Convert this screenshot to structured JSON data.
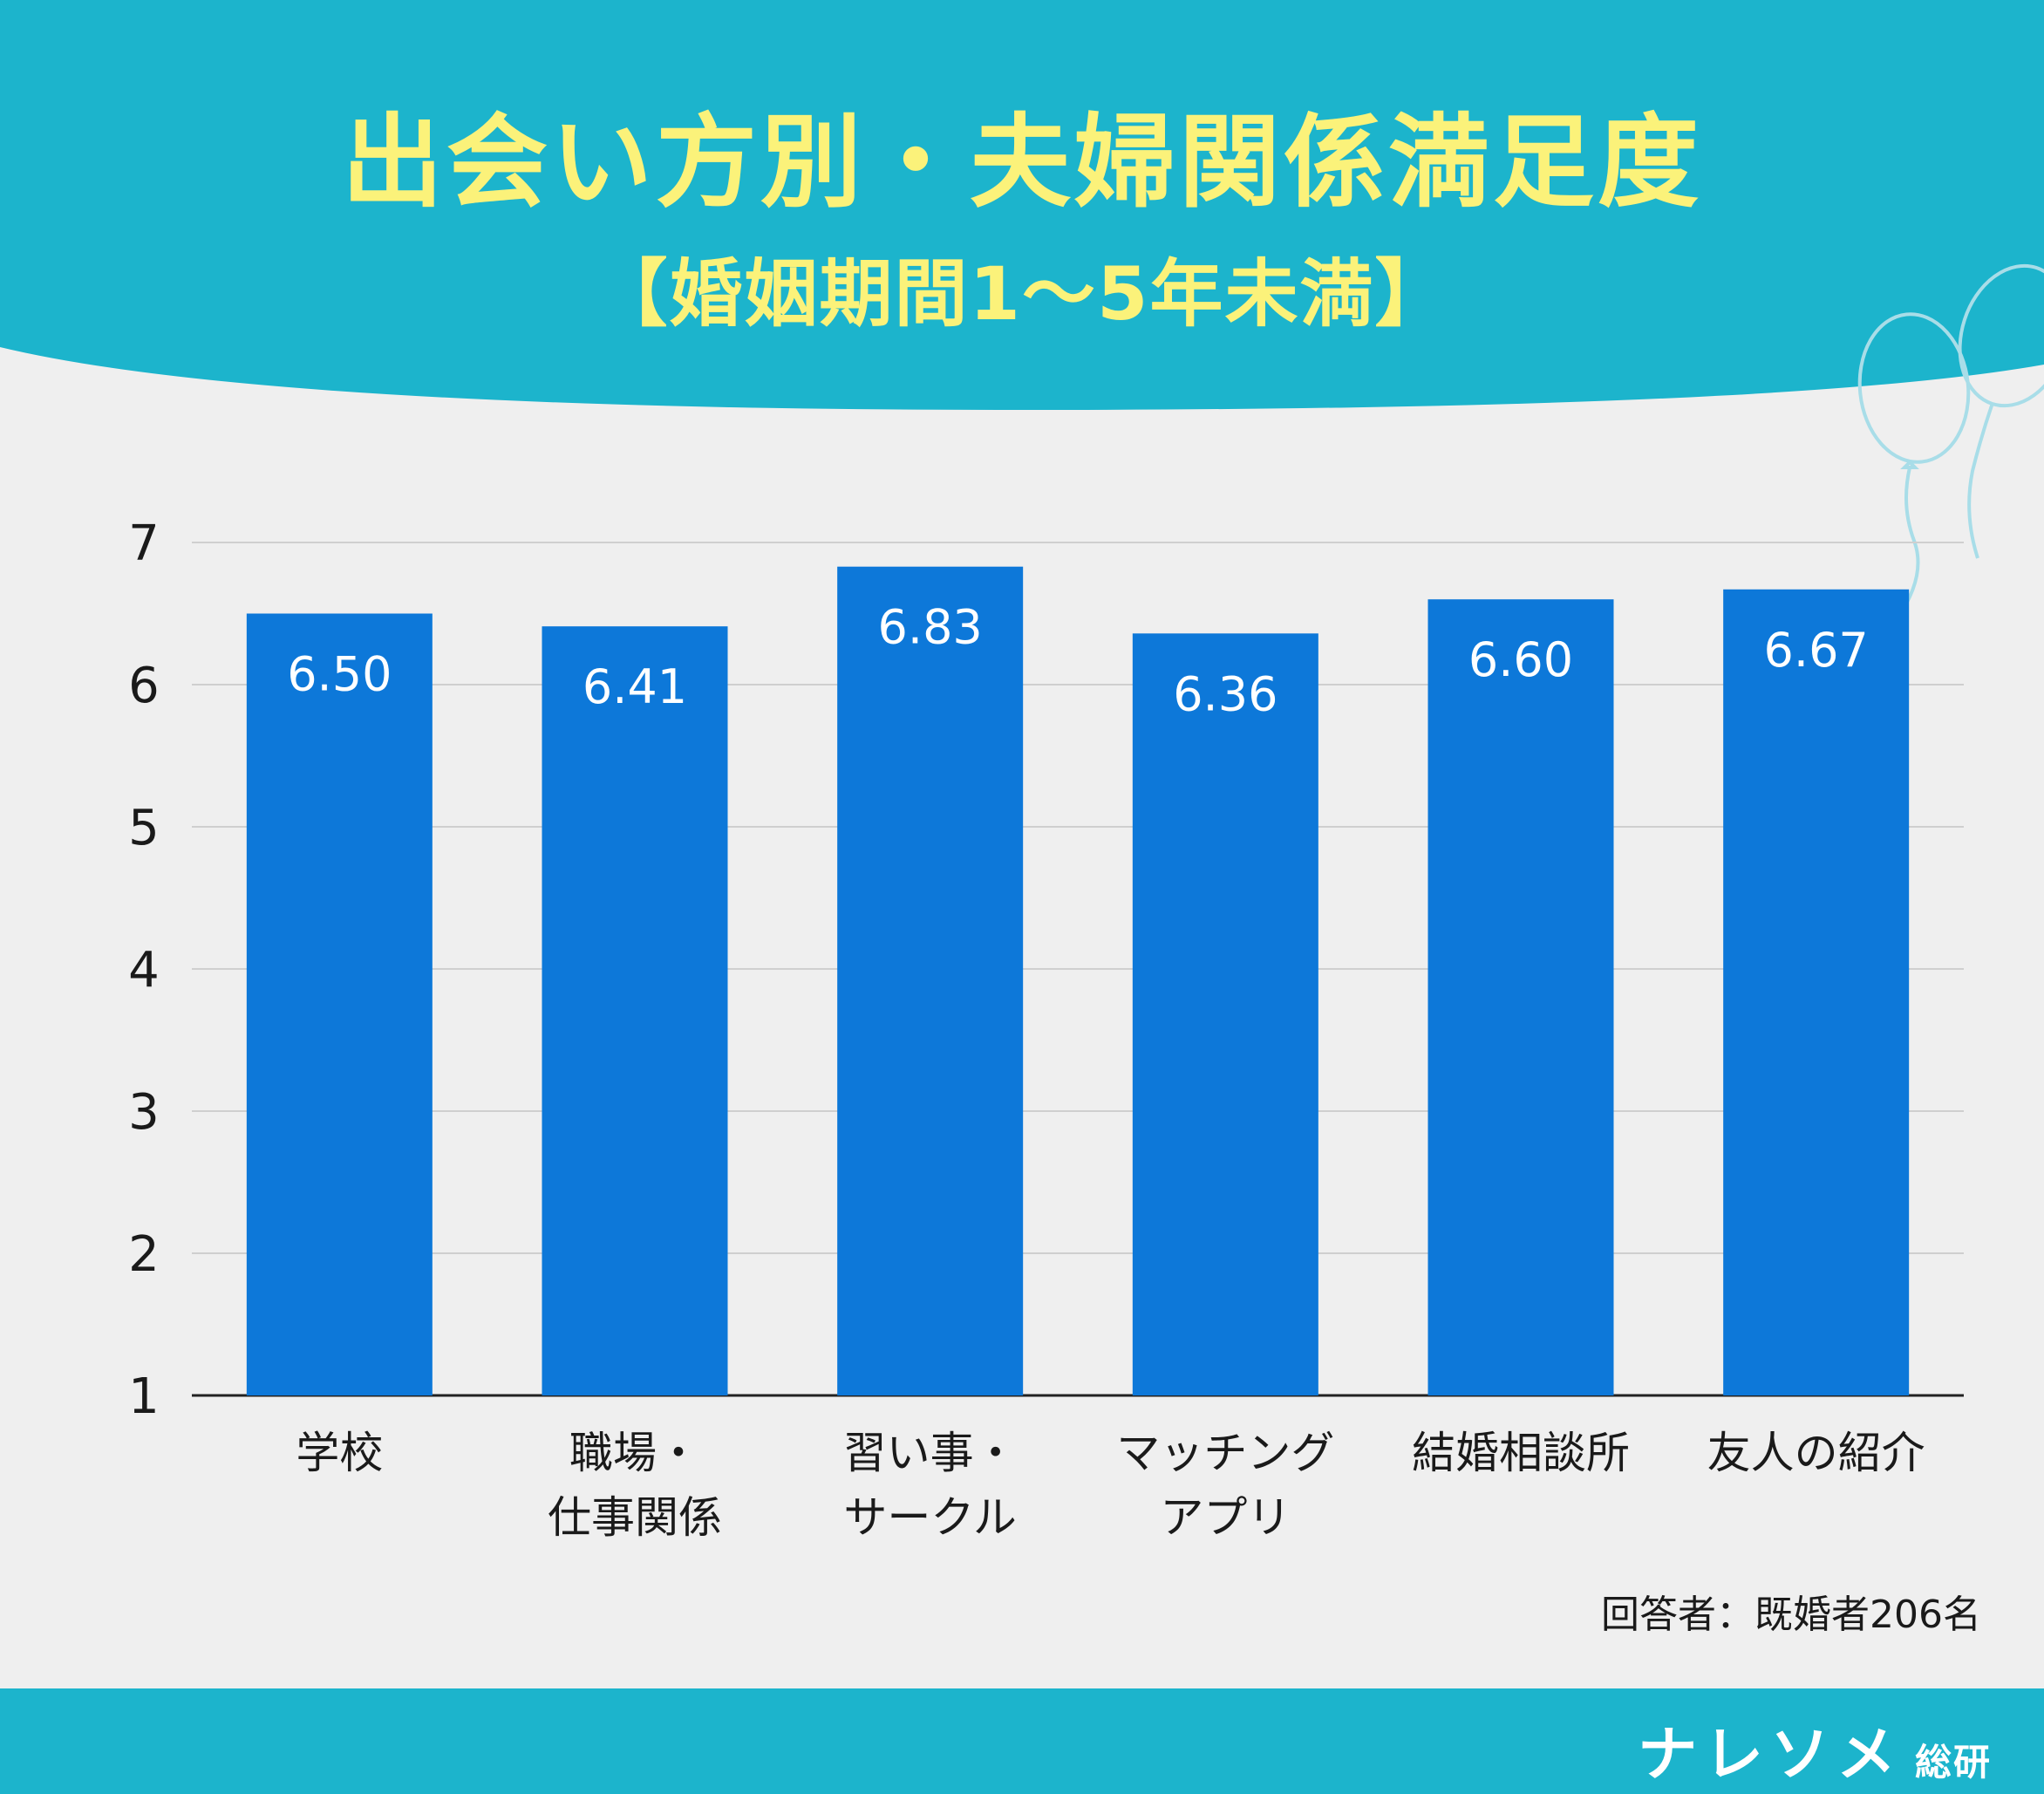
{
  "header": {
    "title": "出会い方別・夫婦関係満足度",
    "subtitle": "【婚姻期間1〜5年未満】"
  },
  "colors": {
    "header_teal": "#1cb4cc",
    "title_yellow": "#fbf27a",
    "bar_blue": "#0d78d9",
    "background": "#efefef",
    "footer_teal": "#1cb4cc"
  },
  "decoration": {
    "balloons_icon": "balloons-outline-icon"
  },
  "chart_data": {
    "type": "bar",
    "categories": [
      [
        "学校"
      ],
      [
        "職場・",
        "仕事関係"
      ],
      [
        "習い事・",
        "サークル"
      ],
      [
        "マッチング",
        "アプリ"
      ],
      [
        "結婚相談所"
      ],
      [
        "友人の紹介"
      ]
    ],
    "values": [
      6.5,
      6.41,
      6.83,
      6.36,
      6.6,
      6.67
    ],
    "value_labels": [
      "6.50",
      "6.41",
      "6.83",
      "6.36",
      "6.60",
      "6.67"
    ],
    "ylim": [
      1,
      7
    ],
    "yticks": [
      1,
      2,
      3,
      4,
      5,
      6,
      7
    ],
    "grid": true,
    "legend": "none"
  },
  "footnote": "回答者：既婚者206名",
  "footer": {
    "brand": "ナレソメ",
    "brand_suffix": "総研"
  }
}
